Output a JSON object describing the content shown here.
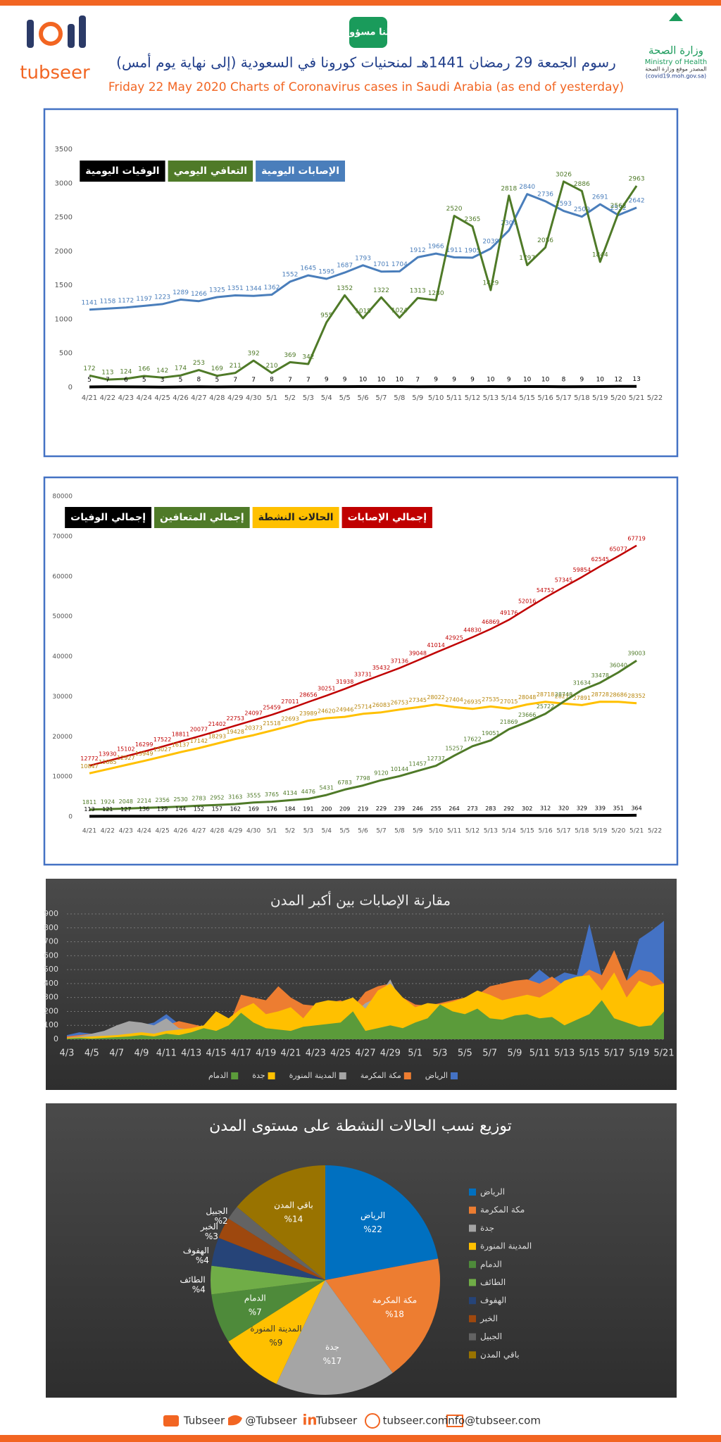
{
  "header": {
    "title": "رسوم الجمعة 29 رمضان 1441هـ لمنحنيات كورونا في السعودية (إلى نهاية يوم أمس)",
    "subtitle": "Friday 22 May 2020 Charts of Coronavirus cases in Saudi Arabia (as end of yesterday)",
    "left_logo": "tubseer",
    "center_logo": "كلنا مسؤول",
    "right_logo": {
      "ar": "وزارة الصحة",
      "en": "Ministry of Health",
      "source": "المصدر موقع وزارة الصحة",
      "url": "(covid19.moh.gov.sa)"
    }
  },
  "chart_data": [
    {
      "type": "line",
      "categories": [
        "4/21",
        "4/22",
        "4/23",
        "4/24",
        "4/25",
        "4/26",
        "4/27",
        "4/28",
        "4/29",
        "4/30",
        "5/1",
        "5/2",
        "5/3",
        "5/4",
        "5/5",
        "5/6",
        "5/7",
        "5/8",
        "5/9",
        "5/10",
        "5/11",
        "5/12",
        "5/13",
        "5/14",
        "5/15",
        "5/16",
        "5/17",
        "5/18",
        "5/19",
        "5/20",
        "5/21",
        "5/22"
      ],
      "series": [
        {
          "name": "الإصابات اليومية",
          "color": "#4a7ebb",
          "values": [
            1141,
            1158,
            1172,
            1197,
            1223,
            1289,
            1266,
            1325,
            1351,
            1344,
            1362,
            1552,
            1645,
            1595,
            1687,
            1793,
            1701,
            1704,
            1912,
            1966,
            1911,
            1905,
            2039,
            2307,
            2840,
            2736,
            2593,
            2509,
            2691,
            2532,
            2642,
            null
          ]
        },
        {
          "name": "التعافي اليومي",
          "color": "#4f7a28",
          "values": [
            172,
            113,
            124,
            166,
            142,
            174,
            253,
            169,
            211,
            392,
            210,
            369,
            342,
            955,
            1352,
            1015,
            1322,
            1024,
            1313,
            1280,
            2520,
            2365,
            1429,
            2818,
            1797,
            2056,
            3026,
            2886,
            1844,
            2562,
            2963,
            null
          ]
        },
        {
          "name": "الوفيات اليومية",
          "color": "#000000",
          "values": [
            5,
            7,
            6,
            5,
            3,
            5,
            8,
            5,
            7,
            7,
            8,
            7,
            7,
            9,
            9,
            10,
            10,
            10,
            7,
            9,
            9,
            9,
            10,
            9,
            10,
            10,
            8,
            9,
            10,
            12,
            13,
            null
          ]
        }
      ],
      "ylim": [
        0,
        3500
      ],
      "yticks": [
        0,
        500,
        1000,
        1500,
        2000,
        2500,
        3000,
        3500
      ],
      "grid": false
    },
    {
      "type": "line",
      "categories": [
        "4/21",
        "4/22",
        "4/23",
        "4/24",
        "4/25",
        "4/26",
        "4/27",
        "4/28",
        "4/29",
        "4/30",
        "5/1",
        "5/2",
        "5/3",
        "5/4",
        "5/5",
        "5/6",
        "5/7",
        "5/8",
        "5/9",
        "5/10",
        "5/11",
        "5/12",
        "5/13",
        "5/14",
        "5/15",
        "5/16",
        "5/17",
        "5/18",
        "5/19",
        "5/20",
        "5/21",
        "5/22"
      ],
      "series": [
        {
          "name": "إجمالي الإصابات",
          "color": "#c00000",
          "values": [
            12772,
            13930,
            15102,
            16299,
            17522,
            18811,
            20077,
            21402,
            22753,
            24097,
            25459,
            27011,
            28656,
            30251,
            31938,
            33731,
            35432,
            37136,
            39048,
            41014,
            42925,
            44830,
            46869,
            49176,
            52016,
            54752,
            57345,
            59854,
            62545,
            65077,
            67719,
            null
          ]
        },
        {
          "name": "الحالات النشطة",
          "color": "#ffc000",
          "values": [
            10847,
            11885,
            12927,
            13949,
            15027,
            16137,
            17142,
            18293,
            19428,
            20373,
            21518,
            22693,
            23989,
            24620,
            24946,
            25714,
            26083,
            26753,
            27345,
            28022,
            27404,
            26935,
            27535,
            27015,
            28048,
            28718,
            28277,
            27891,
            28728,
            28686,
            28352,
            null
          ]
        },
        {
          "name": "إجمالي المتعافين",
          "color": "#4f7a28",
          "values": [
            1811,
            1924,
            2048,
            2214,
            2356,
            2530,
            2783,
            2952,
            3163,
            3555,
            3765,
            4134,
            4476,
            5431,
            6783,
            7798,
            9120,
            10144,
            11457,
            12737,
            15257,
            17622,
            19051,
            21869,
            23666,
            25722,
            28748,
            31634,
            33478,
            36040,
            39003,
            null
          ]
        },
        {
          "name": "إجمالي الوفيات",
          "color": "#000000",
          "values": [
            113,
            121,
            127,
            136,
            139,
            144,
            152,
            157,
            162,
            169,
            176,
            184,
            191,
            200,
            209,
            219,
            229,
            239,
            246,
            255,
            264,
            273,
            283,
            292,
            302,
            312,
            320,
            329,
            339,
            351,
            364,
            null
          ]
        }
      ],
      "ylim": [
        0,
        80000
      ],
      "yticks": [
        0,
        10000,
        20000,
        30000,
        40000,
        50000,
        60000,
        70000,
        80000
      ],
      "grid": false
    },
    {
      "type": "area",
      "title": "مقارنة الإصابات بين أكبر المدن",
      "categories": [
        "4/3",
        null,
        "4/5",
        null,
        "4/7",
        null,
        "4/9",
        null,
        "4/11",
        null,
        "4/13",
        null,
        "4/15",
        null,
        "4/17",
        null,
        "4/19",
        null,
        "4/21",
        null,
        "4/23",
        null,
        "4/25",
        null,
        "4/27",
        null,
        "4/29",
        null,
        "5/1",
        null,
        "5/3",
        null,
        "5/5",
        null,
        "5/7",
        null,
        "5/9",
        null,
        "5/11",
        null,
        "5/13",
        null,
        "5/15",
        null,
        "5/17",
        null,
        "5/19",
        null,
        "5/21"
      ],
      "series": [
        {
          "name": "الرياض",
          "color": "#4472c4",
          "values": [
            30,
            50,
            40,
            60,
            80,
            90,
            100,
            120,
            180,
            110,
            90,
            80,
            100,
            120,
            140,
            160,
            150,
            130,
            150,
            170,
            160,
            180,
            200,
            150,
            170,
            200,
            220,
            180,
            170,
            200,
            220,
            240,
            300,
            280,
            320,
            300,
            350,
            420,
            500,
            430,
            480,
            460,
            830,
            450,
            520,
            420,
            720,
            780,
            850
          ]
        },
        {
          "name": "مكة المكرمة",
          "color": "#ed7d31",
          "values": [
            20,
            30,
            40,
            50,
            60,
            50,
            70,
            80,
            100,
            130,
            110,
            90,
            80,
            100,
            320,
            300,
            280,
            380,
            300,
            250,
            240,
            260,
            280,
            230,
            340,
            380,
            400,
            300,
            250,
            240,
            260,
            280,
            300,
            320,
            380,
            400,
            420,
            430,
            400,
            450,
            380,
            420,
            500,
            460,
            640,
            420,
            500,
            480,
            400
          ]
        },
        {
          "name": "المدينة المنورة",
          "color": "#a5a5a5",
          "values": [
            10,
            20,
            40,
            60,
            100,
            130,
            120,
            100,
            150,
            80,
            70,
            60,
            80,
            100,
            90,
            100,
            130,
            120,
            100,
            130,
            160,
            170,
            200,
            180,
            260,
            300,
            430,
            250,
            120,
            130,
            140,
            150,
            180,
            200,
            240,
            260,
            220,
            200,
            180,
            190,
            170,
            160,
            150,
            140,
            120,
            130,
            110,
            100,
            120
          ]
        },
        {
          "name": "جدة",
          "color": "#ffc000",
          "values": [
            10,
            15,
            20,
            25,
            30,
            40,
            50,
            40,
            60,
            70,
            80,
            100,
            200,
            150,
            220,
            260,
            180,
            200,
            230,
            150,
            260,
            280,
            270,
            300,
            220,
            350,
            400,
            300,
            230,
            260,
            250,
            270,
            300,
            350,
            320,
            280,
            300,
            320,
            300,
            350,
            420,
            450,
            460,
            350,
            480,
            300,
            420,
            380,
            400
          ]
        },
        {
          "name": "الدمام",
          "color": "#5b9b3a",
          "values": [
            5,
            10,
            5,
            10,
            15,
            20,
            30,
            20,
            40,
            30,
            50,
            80,
            60,
            100,
            190,
            120,
            80,
            70,
            60,
            90,
            100,
            110,
            120,
            200,
            60,
            80,
            100,
            80,
            120,
            150,
            250,
            200,
            180,
            220,
            150,
            140,
            170,
            180,
            150,
            160,
            100,
            140,
            180,
            280,
            150,
            120,
            90,
            100,
            200
          ]
        }
      ],
      "ylim": [
        0,
        900
      ],
      "yticks": [
        0,
        100,
        200,
        300,
        400,
        500,
        600,
        700,
        800,
        900
      ],
      "grid": true
    },
    {
      "type": "pie",
      "title": "توزيع نسب الحالات النشطة على مستوى المدن",
      "categories": [
        "الرياض",
        "مكة المكرمة",
        "جدة",
        "المدينة المنورة",
        "الدمام",
        "الطائف",
        "الهفوف",
        "الخبر",
        "الجبيل",
        "باقي المدن"
      ],
      "values": [
        22,
        18,
        17,
        9,
        7,
        4,
        4,
        3,
        2,
        14
      ],
      "value_labels": [
        "%22",
        "%18",
        "%17",
        "%9",
        "%7",
        "%4",
        "%4",
        "%3",
        "%2",
        "%14"
      ],
      "colors": [
        "#0070c0",
        "#ed7d31",
        "#a5a5a5",
        "#ffc000",
        "#4e8a3a",
        "#70ad47",
        "#264478",
        "#9e480e",
        "#636363",
        "#997300"
      ]
    }
  ],
  "footer": {
    "items": [
      "Tubseer",
      "@Tubseer",
      "Tubseer",
      "tubseer.com",
      "info@tubseer.com"
    ]
  }
}
